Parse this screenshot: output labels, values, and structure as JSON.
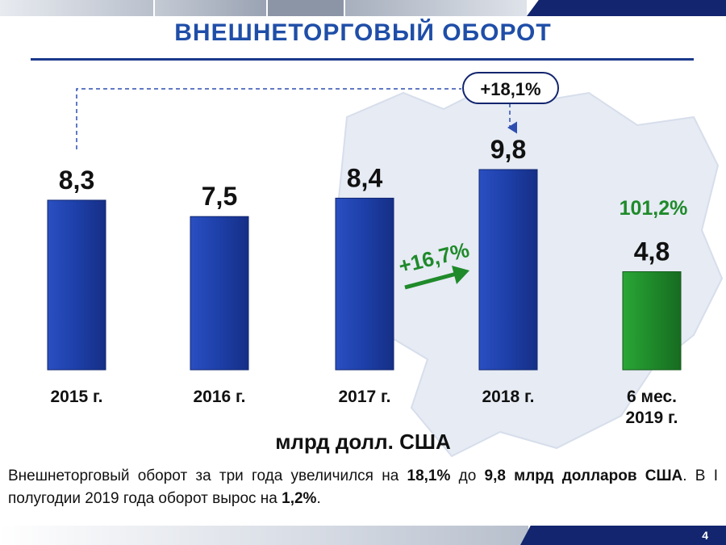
{
  "title": "ВНЕШНЕТОРГОВЫЙ ОБОРОТ",
  "unit_label": "млрд долл. США",
  "summary": {
    "p1": "Внешнеторговый оборот за три года увеличился на ",
    "b1": "18,1%",
    "p2": " до ",
    "b2": "9,8 млрд долларов США",
    "p3": ". В I полугодии 2019 года оборот вырос на ",
    "b3": "1,2%",
    "p4": "."
  },
  "page_number": "4",
  "colors": {
    "bar_blue": "#1d3fa8",
    "bar_green": "#1f8a2a",
    "title_blue": "#1f4ea8",
    "accent_green": "#1f8a2a",
    "navy": "#13256e"
  },
  "chart_data": {
    "type": "bar",
    "categories": [
      "2015 г.",
      "2016 г.",
      "2017 г.",
      "2018 г.",
      "6 мес.\n2019 г."
    ],
    "values": [
      8.3,
      7.5,
      8.4,
      9.8,
      4.8
    ],
    "value_labels": [
      "8,3",
      "7,5",
      "8,4",
      "9,8",
      "4,8"
    ],
    "bar_colors": [
      "#1d3fa8",
      "#1d3fa8",
      "#1d3fa8",
      "#1d3fa8",
      "#1f8a2a"
    ],
    "ylim": [
      0,
      9.8
    ],
    "annotations": {
      "growth_2015_2018": "+18,1%",
      "growth_2017_2018": "+16,7%",
      "h1_2019_index": "101,2%"
    }
  }
}
